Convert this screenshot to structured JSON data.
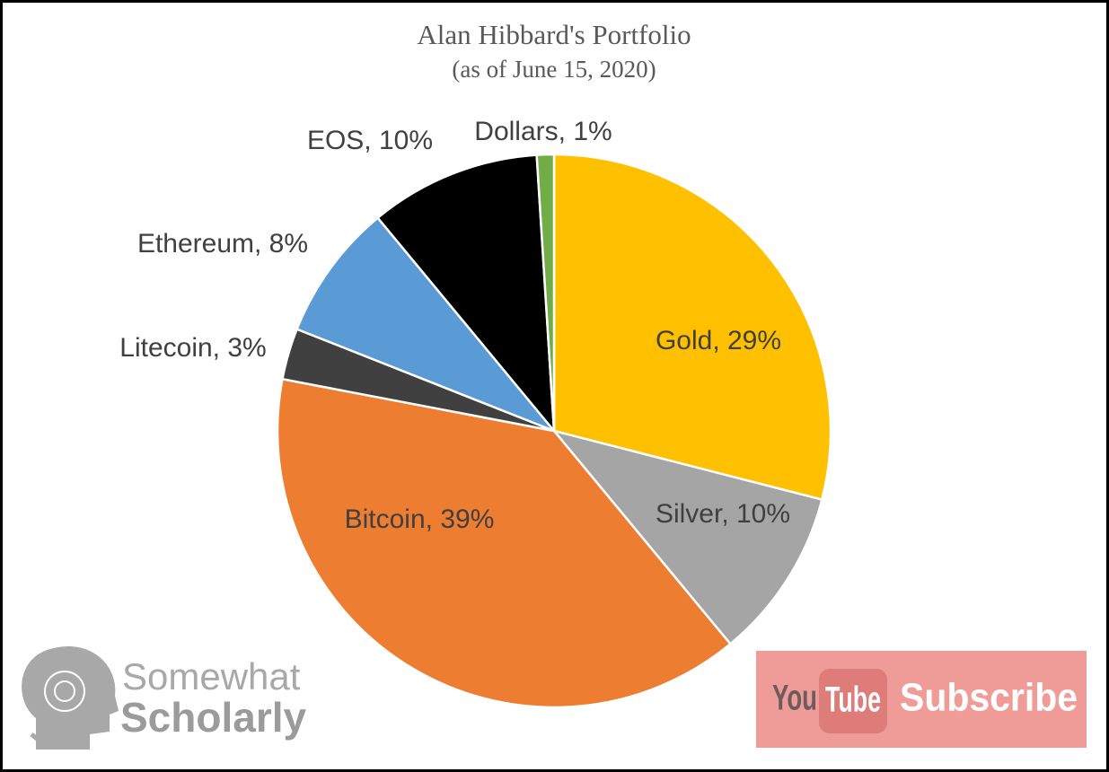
{
  "chart_data": {
    "type": "pie",
    "title": "Alan Hibbard's Portfolio",
    "subtitle": "(as of June 15, 2020)",
    "values": [
      29,
      10,
      39,
      3,
      8,
      10,
      1
    ],
    "value_labels": [
      "Gold, 29%",
      "Silver, 10%",
      "Bitcoin, 39%",
      "Litecoin, 3%",
      "Ethereum, 8%",
      "EOS, 10%",
      "Dollars, 1%"
    ],
    "colors": [
      "#ffc000",
      "#a5a5a5",
      "#ed7d31",
      "#404040",
      "#5b9bd5",
      "#000000",
      "#70ad47"
    ]
  },
  "branding": {
    "logo_line1": "Somewhat",
    "logo_line2": "Scholarly",
    "button_you": "You",
    "button_tube": "Tube",
    "button_label": "Subscribe"
  }
}
